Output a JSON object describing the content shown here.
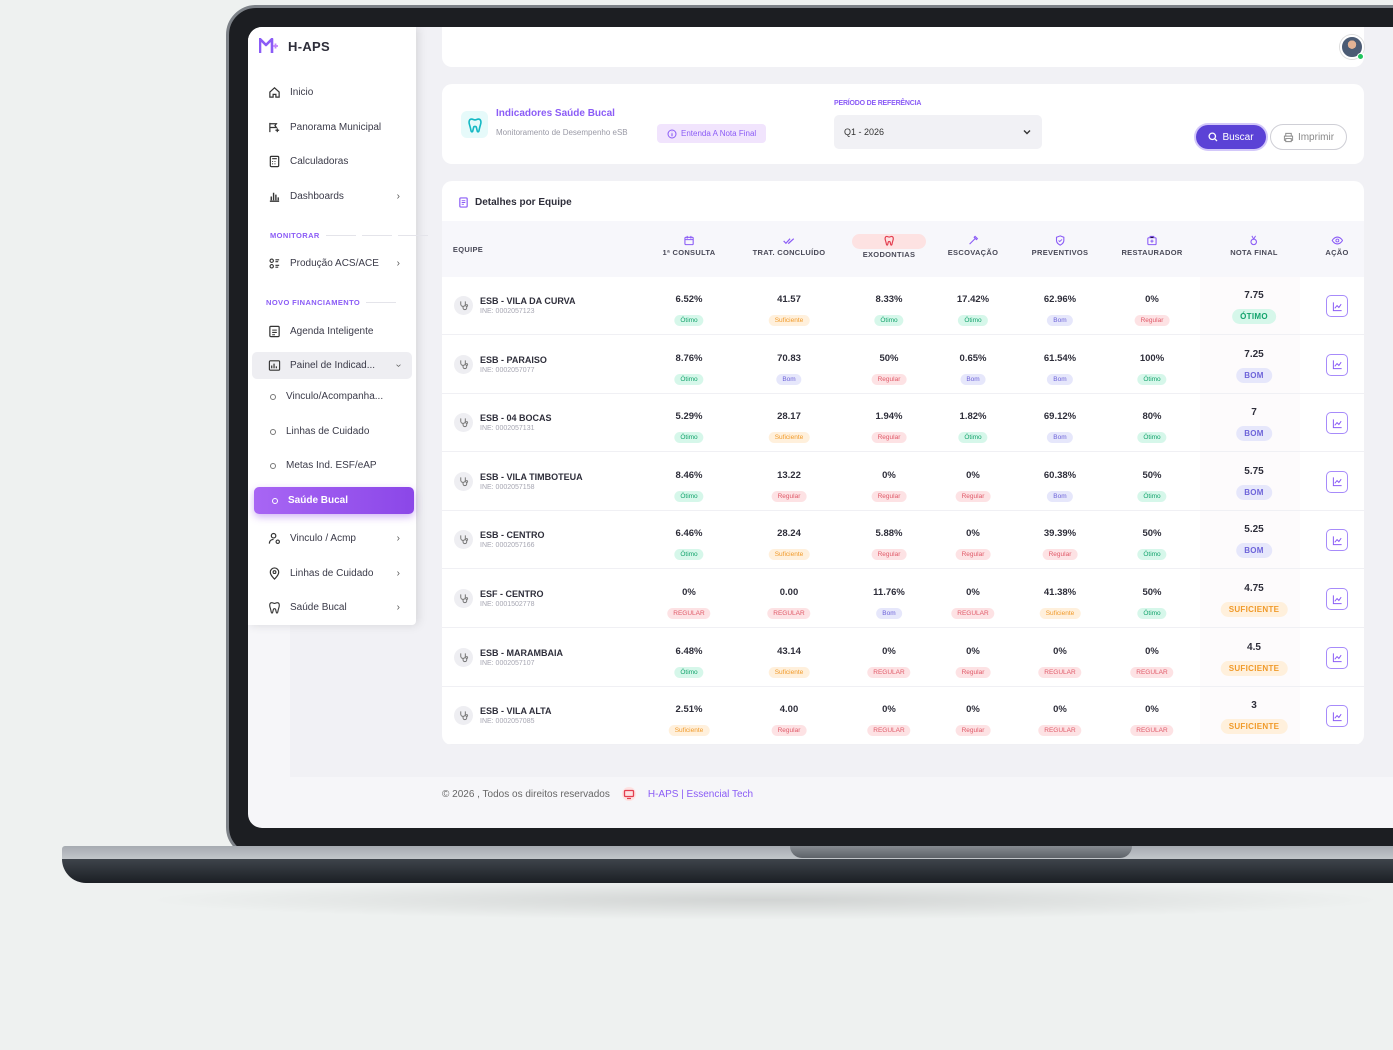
{
  "app": {
    "name": "H-APS"
  },
  "sidebar": {
    "items_top": [
      {
        "label": "Inicio",
        "icon": "home-icon"
      },
      {
        "label": "Panorama Municipal",
        "icon": "panorama-icon"
      },
      {
        "label": "Calculadoras",
        "icon": "calculator-icon"
      },
      {
        "label": "Dashboards",
        "icon": "bar-chart-icon"
      }
    ],
    "section_monitorar": "MONITORAR",
    "producao": "Produção ACS/ACE",
    "section_financiamento": "NOVO FINANCIAMENTO",
    "agenda": "Agenda Inteligente",
    "painel": "Painel de Indicad...",
    "sub_items": [
      "Vinculo/Acompanha...",
      "Linhas de Cuidado",
      "Metas Ind. ESF/eAP"
    ],
    "active": "Saúde Bucal",
    "items_bottom": [
      {
        "label": "Vinculo / Acmp",
        "icon": "user-pin-icon"
      },
      {
        "label": "Linhas de Cuidado",
        "icon": "map-pin-icon"
      },
      {
        "label": "Saúde Bucal",
        "icon": "tooth-icon"
      }
    ]
  },
  "header": {
    "title": "Indicadores Saúde Bucal",
    "subtitle": "Monitoramento de Desempenho eSB",
    "nota_button": "Entenda A Nota Final",
    "period_label": "PERÍODO DE REFERÊNCIA",
    "period_value": "Q1 - 2026",
    "buscar": "Buscar",
    "imprimir": "Imprimir"
  },
  "table": {
    "title": "Detalhes por Equipe",
    "col_equipe": "EQUIPE",
    "columns": [
      {
        "label": "1ª CONSULTA"
      },
      {
        "label": "TRAT. CONCLUÍDO"
      },
      {
        "label": "EXODONTIAS"
      },
      {
        "label": "ESCOVAÇÃO"
      },
      {
        "label": "PREVENTIVOS"
      },
      {
        "label": "RESTAURADOR"
      },
      {
        "label": "NOTA FINAL"
      },
      {
        "label": "AÇÃO"
      }
    ],
    "rows": [
      {
        "name": "ESB - VILA DA CURVA",
        "ine": "INE: 0002057123",
        "cells": [
          [
            "6.52%",
            "Ótimo",
            "otimo"
          ],
          [
            "41.57",
            "Suficiente",
            "sufi"
          ],
          [
            "8.33%",
            "Ótimo",
            "otimo"
          ],
          [
            "17.42%",
            "Ótimo",
            "otimo"
          ],
          [
            "62.96%",
            "Bom",
            "bom"
          ],
          [
            "0%",
            "Regular",
            "reg"
          ]
        ],
        "nota": [
          "7.75",
          "ÓTIMO",
          "otimo"
        ]
      },
      {
        "name": "ESB - PARAISO",
        "ine": "INE: 0002057077",
        "cells": [
          [
            "8.76%",
            "Ótimo",
            "otimo"
          ],
          [
            "70.83",
            "Bom",
            "bom"
          ],
          [
            "50%",
            "Regular",
            "reg"
          ],
          [
            "0.65%",
            "Bom",
            "bom"
          ],
          [
            "61.54%",
            "Bom",
            "bom"
          ],
          [
            "100%",
            "Ótimo",
            "otimo"
          ]
        ],
        "nota": [
          "7.25",
          "BOM",
          "bom"
        ]
      },
      {
        "name": "ESB - 04 BOCAS",
        "ine": "INE: 0002057131",
        "cells": [
          [
            "5.29%",
            "Ótimo",
            "otimo"
          ],
          [
            "28.17",
            "Suficiente",
            "sufi"
          ],
          [
            "1.94%",
            "Regular",
            "reg"
          ],
          [
            "1.82%",
            "Ótimo",
            "otimo"
          ],
          [
            "69.12%",
            "Bom",
            "bom"
          ],
          [
            "80%",
            "Ótimo",
            "otimo"
          ]
        ],
        "nota": [
          "7",
          "BOM",
          "bom"
        ]
      },
      {
        "name": "ESB - VILA TIMBOTEUA",
        "ine": "INE: 0002057158",
        "cells": [
          [
            "8.46%",
            "Ótimo",
            "otimo"
          ],
          [
            "13.22",
            "Regular",
            "reg"
          ],
          [
            "0%",
            "Regular",
            "reg"
          ],
          [
            "0%",
            "Regular",
            "reg"
          ],
          [
            "60.38%",
            "Bom",
            "bom"
          ],
          [
            "50%",
            "Ótimo",
            "otimo"
          ]
        ],
        "nota": [
          "5.75",
          "BOM",
          "bom"
        ]
      },
      {
        "name": "ESB - CENTRO",
        "ine": "INE: 0002057166",
        "cells": [
          [
            "6.46%",
            "Ótimo",
            "otimo"
          ],
          [
            "28.24",
            "Suficiente",
            "sufi"
          ],
          [
            "5.88%",
            "Regular",
            "reg"
          ],
          [
            "0%",
            "Regular",
            "reg"
          ],
          [
            "39.39%",
            "Regular",
            "reg"
          ],
          [
            "50%",
            "Ótimo",
            "otimo"
          ]
        ],
        "nota": [
          "5.25",
          "BOM",
          "bom"
        ]
      },
      {
        "name": "ESF - CENTRO",
        "ine": "INE: 0001502778",
        "cells": [
          [
            "0%",
            "REGULAR",
            "reg"
          ],
          [
            "0.00",
            "REGULAR",
            "reg"
          ],
          [
            "11.76%",
            "Bom",
            "bom"
          ],
          [
            "0%",
            "REGULAR",
            "reg"
          ],
          [
            "41.38%",
            "Suficiente",
            "sufi"
          ],
          [
            "50%",
            "Ótimo",
            "otimo"
          ]
        ],
        "nota": [
          "4.75",
          "SUFICIENTE",
          "sufi"
        ]
      },
      {
        "name": "ESB - MARAMBAIA",
        "ine": "INE: 0002057107",
        "cells": [
          [
            "6.48%",
            "Ótimo",
            "otimo"
          ],
          [
            "43.14",
            "Suficiente",
            "sufi"
          ],
          [
            "0%",
            "REGULAR",
            "reg"
          ],
          [
            "0%",
            "Regular",
            "reg"
          ],
          [
            "0%",
            "REGULAR",
            "reg"
          ],
          [
            "0%",
            "REGULAR",
            "reg"
          ]
        ],
        "nota": [
          "4.5",
          "SUFICIENTE",
          "sufi"
        ]
      },
      {
        "name": "ESB - VILA ALTA",
        "ine": "INE: 0002057085",
        "cells": [
          [
            "2.51%",
            "Suficiente",
            "sufi"
          ],
          [
            "4.00",
            "Regular",
            "reg"
          ],
          [
            "0%",
            "REGULAR",
            "reg"
          ],
          [
            "0%",
            "Regular",
            "reg"
          ],
          [
            "0%",
            "REGULAR",
            "reg"
          ],
          [
            "0%",
            "REGULAR",
            "reg"
          ]
        ],
        "nota": [
          "3",
          "SUFICIENTE",
          "sufi"
        ]
      }
    ]
  },
  "footer": {
    "copyright": "© 2026 , Todos os direitos reservados",
    "brand": "H-APS | Essencial Tech"
  },
  "colors": {
    "accent": "#8b5cf6",
    "primary_button": "#5b42d6"
  }
}
